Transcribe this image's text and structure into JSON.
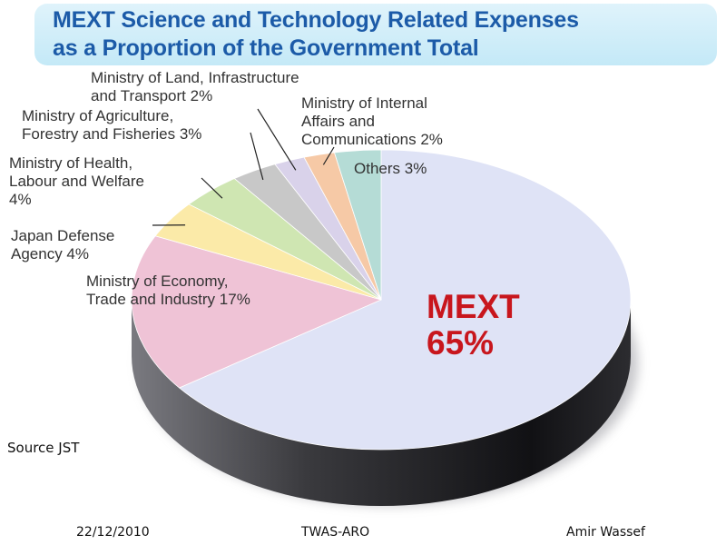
{
  "slide": {
    "title_line1": "MEXT Science and Technology Related Expenses",
    "title_line2": "as a Proportion of the Government Total",
    "source": "Source JST",
    "footer_date": "22/12/2010",
    "footer_org": "TWAS-ARO",
    "footer_author": "Amir Wassef"
  },
  "chart_data": {
    "type": "pie",
    "title": "MEXT Science and Technology Related Expenses as a Proportion of the Government Total",
    "slices": [
      {
        "label_lines": [
          "MEXT",
          "65%"
        ],
        "name": "MEXT",
        "value": 65,
        "color": "#dfe3f6"
      },
      {
        "label_lines": [
          "Ministry of Economy,",
          "Trade and Industry 17%"
        ],
        "name": "Ministry of Economy, Trade and Industry",
        "value": 17,
        "color": "#efc3d6"
      },
      {
        "label_lines": [
          "Japan Defense",
          "Agency 4%"
        ],
        "name": "Japan Defense Agency",
        "value": 4,
        "color": "#fbeaa8"
      },
      {
        "label_lines": [
          "Ministry of Health,",
          "Labour and Welfare",
          "4%"
        ],
        "name": "Ministry of Health, Labour and Welfare",
        "value": 4,
        "color": "#cfe6b2"
      },
      {
        "label_lines": [
          "Ministry of Agriculture,",
          "Forestry and Fisheries 3%"
        ],
        "name": "Ministry of Agriculture, Forestry and Fisheries",
        "value": 3,
        "color": "#c8c8c8"
      },
      {
        "label_lines": [
          "Ministry of Land, Infrastructure",
          "and Transport 2%"
        ],
        "name": "Ministry of Land, Infrastructure and Transport",
        "value": 2,
        "color": "#d9d2ea"
      },
      {
        "label_lines": [
          "Ministry of Internal",
          "Affairs and",
          "Communications 2%"
        ],
        "name": "Ministry of Internal Affairs and Communications",
        "value": 2,
        "color": "#f6c9a6"
      },
      {
        "label_lines": [
          "Others 3%"
        ],
        "name": "Others",
        "value": 3,
        "color": "#b5dcd6"
      }
    ],
    "main_label_color": "#c8161d"
  }
}
